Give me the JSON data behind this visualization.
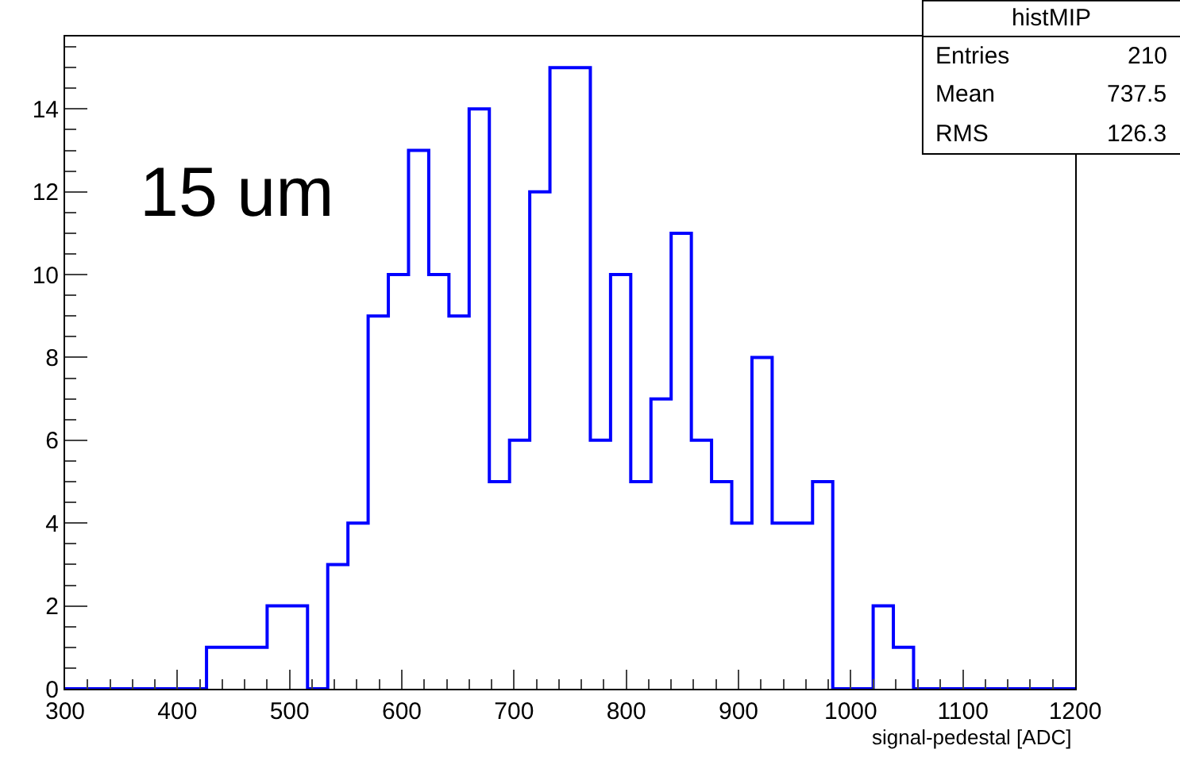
{
  "chart_data": {
    "type": "histogram",
    "bins": [
      300,
      318,
      336,
      354,
      372,
      390,
      408,
      426,
      444,
      462,
      480,
      498,
      516,
      534,
      552,
      570,
      588,
      606,
      624,
      642,
      660,
      678,
      696,
      714,
      732,
      750,
      768,
      786,
      804,
      822,
      840,
      858,
      876,
      894,
      912,
      930,
      948,
      966,
      984,
      1002,
      1020,
      1038,
      1056,
      1074,
      1092,
      1110,
      1128,
      1146,
      1164,
      1182,
      1200
    ],
    "values": [
      0,
      0,
      0,
      0,
      0,
      0,
      0,
      1,
      1,
      1,
      2,
      2,
      0,
      3,
      4,
      9,
      10,
      13,
      10,
      9,
      14,
      5,
      6,
      12,
      15,
      15,
      6,
      10,
      5,
      7,
      11,
      6,
      5,
      4,
      8,
      4,
      4,
      5,
      0,
      0,
      2,
      1,
      0,
      0,
      0,
      0,
      0,
      0,
      0,
      0
    ],
    "color": "#0000ff",
    "xlabel": "signal-pedestal [ADC]",
    "xlim": [
      300,
      1200
    ],
    "xticks": [
      300,
      400,
      500,
      600,
      700,
      800,
      900,
      1000,
      1100,
      1200
    ],
    "ylim": [
      0,
      15.75
    ],
    "yticks": [
      0,
      2,
      4,
      6,
      8,
      10,
      12,
      14
    ],
    "annotations": [
      "15 um",
      "histMIP",
      "Entries",
      "210",
      "Mean",
      "737.5",
      "RMS",
      "126.3"
    ]
  }
}
